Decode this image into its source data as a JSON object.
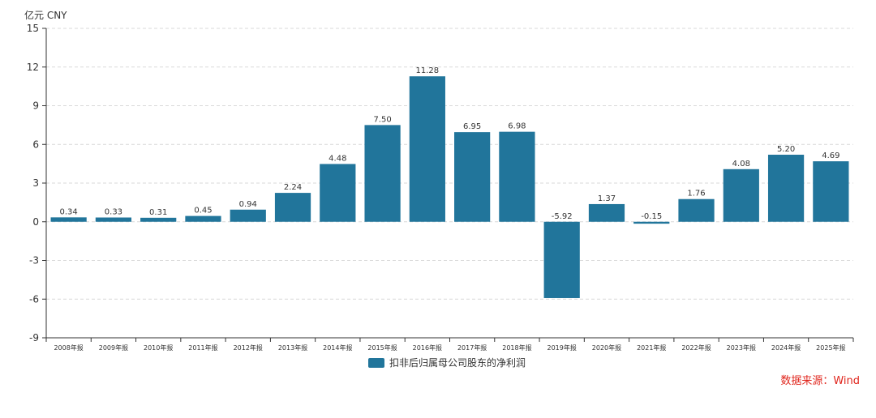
{
  "unit_label": "亿元  CNY",
  "source_text": "数据来源：Wind",
  "colors": {
    "bar": "#21759b",
    "axis": "#333333",
    "grid": "#d9d9d9"
  },
  "chart_data": {
    "type": "bar",
    "categories": [
      "2008年报",
      "2009年报",
      "2010年报",
      "2011年报",
      "2012年报",
      "2013年报",
      "2014年报",
      "2015年报",
      "2016年报",
      "2017年报",
      "2018年报",
      "2019年报",
      "2020年报",
      "2021年报",
      "2022年报",
      "2023年报",
      "2024年报",
      "2025年报"
    ],
    "series": [
      {
        "name": "扣非后归属母公司股东的净利润",
        "values": [
          0.34,
          0.33,
          0.31,
          0.45,
          0.94,
          2.24,
          4.48,
          7.5,
          11.28,
          6.95,
          6.98,
          -5.92,
          1.37,
          -0.15,
          1.76,
          4.08,
          5.2,
          4.69
        ],
        "labels": [
          "0.34",
          "0.33",
          "0.31",
          "0.45",
          "0.94",
          "2.24",
          "4.48",
          "7.50",
          "11.28",
          "6.95",
          "6.98",
          "-5.92",
          "1.37",
          "-0.15",
          "1.76",
          "4.08",
          "5.20",
          "4.69"
        ]
      }
    ],
    "ylim": [
      -9,
      15
    ],
    "yticks": [
      15,
      12,
      9,
      6,
      3,
      0,
      -3,
      -6,
      -9
    ],
    "grid": true,
    "legend_position": "bottom-center"
  }
}
